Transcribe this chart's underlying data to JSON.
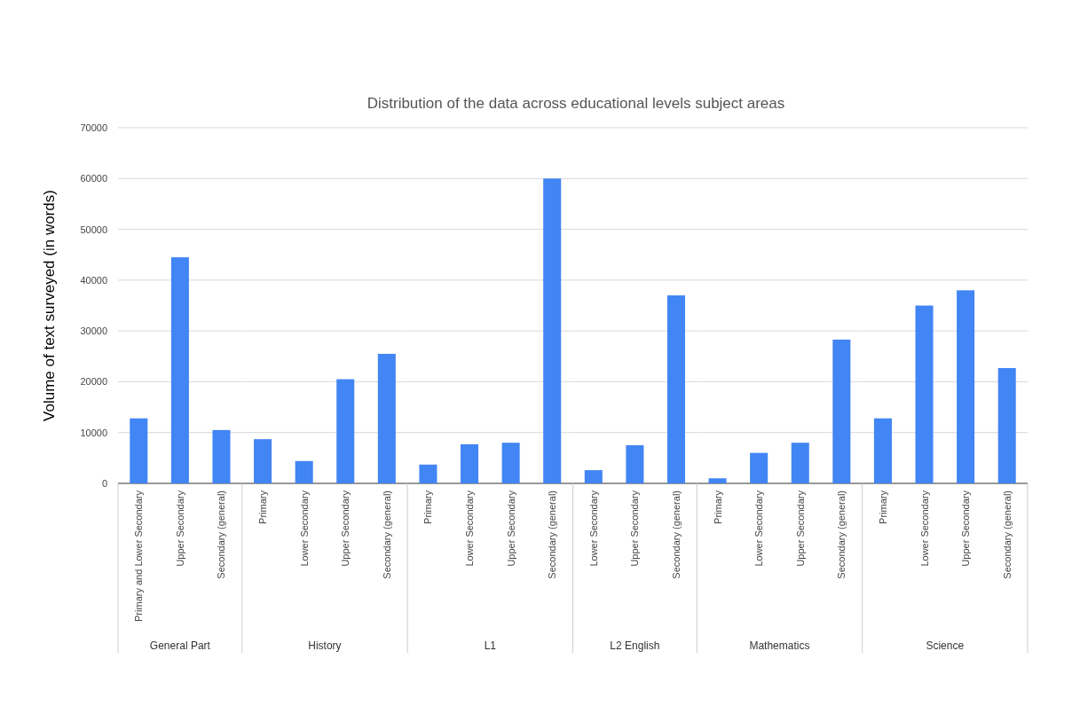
{
  "chart_data": [
    {
      "type": "bar",
      "ylabel": "Volume of text surveyed (in words)",
      "xlabel": "General Part",
      "categories": [
        "Primary and Lower Secondary",
        "Upper Secondary",
        "Secondary (general)"
      ],
      "values": [
        12800,
        44500,
        10500
      ],
      "color": "#4285f4",
      "ylim": [
        0,
        70000
      ],
      "yticks": [
        0,
        10000,
        20000,
        30000,
        40000,
        50000,
        60000,
        70000
      ],
      "grid": "y"
    },
    {
      "type": "bar",
      "xlabel": "History",
      "categories": [
        "Primary",
        "Lower Secondary",
        "Upper Secondary",
        "Secondary (general)"
      ],
      "values": [
        8700,
        4400,
        20500,
        25500
      ],
      "color": "#4285f4",
      "ylim": [
        0,
        70000
      ],
      "yticks": [
        0,
        10000,
        20000,
        30000,
        40000,
        50000,
        60000,
        70000
      ],
      "grid": "y",
      "tick_labels": "x"
    },
    {
      "type": "bar",
      "xlabel": "L1",
      "categories": [
        "Primary",
        "Lower Secondary",
        "Upper Secondary",
        "Secondary (general)"
      ],
      "values": [
        3700,
        7700,
        8000,
        60000
      ],
      "color": "#4285f4",
      "ylim": [
        0,
        70000
      ],
      "yticks": [
        0,
        10000,
        20000,
        30000,
        40000,
        50000,
        60000,
        70000
      ],
      "grid": "y",
      "tick_labels": "x"
    },
    {
      "type": "bar",
      "title": "Distribution of the data across educational levels subject areas",
      "xlabel": "L2 English",
      "categories": [
        "Lower Secondary",
        "Upper Secondary",
        "Secondary (general)"
      ],
      "values": [
        2600,
        7500,
        37000
      ],
      "color": "#4285f4",
      "ylim": [
        0,
        70000
      ],
      "yticks": [
        0,
        10000,
        20000,
        30000,
        40000,
        50000,
        60000,
        70000
      ],
      "grid": "y",
      "tick_labels": "x"
    },
    {
      "type": "bar",
      "xlabel": "Mathematics",
      "categories": [
        "Primary",
        "Lower Secondary",
        "Upper Secondary",
        "Secondary (general)"
      ],
      "values": [
        1000,
        6000,
        8000,
        28300
      ],
      "color": "#4285f4",
      "ylim": [
        0,
        70000
      ],
      "yticks": [
        0,
        10000,
        20000,
        30000,
        40000,
        50000,
        60000,
        70000
      ],
      "grid": "y",
      "tick_labels": "x"
    },
    {
      "type": "bar",
      "xlabel": "Science",
      "categories": [
        "Primary",
        "Lower Secondary",
        "Upper Secondary",
        "Secondary (general)"
      ],
      "values": [
        12800,
        35000,
        38000,
        22700
      ],
      "color": "#4285f4",
      "ylim": [
        0,
        70000
      ],
      "yticks": [
        0,
        10000,
        20000,
        30000,
        40000,
        50000,
        60000,
        70000
      ],
      "grid": "y",
      "tick_labels": "x"
    }
  ]
}
